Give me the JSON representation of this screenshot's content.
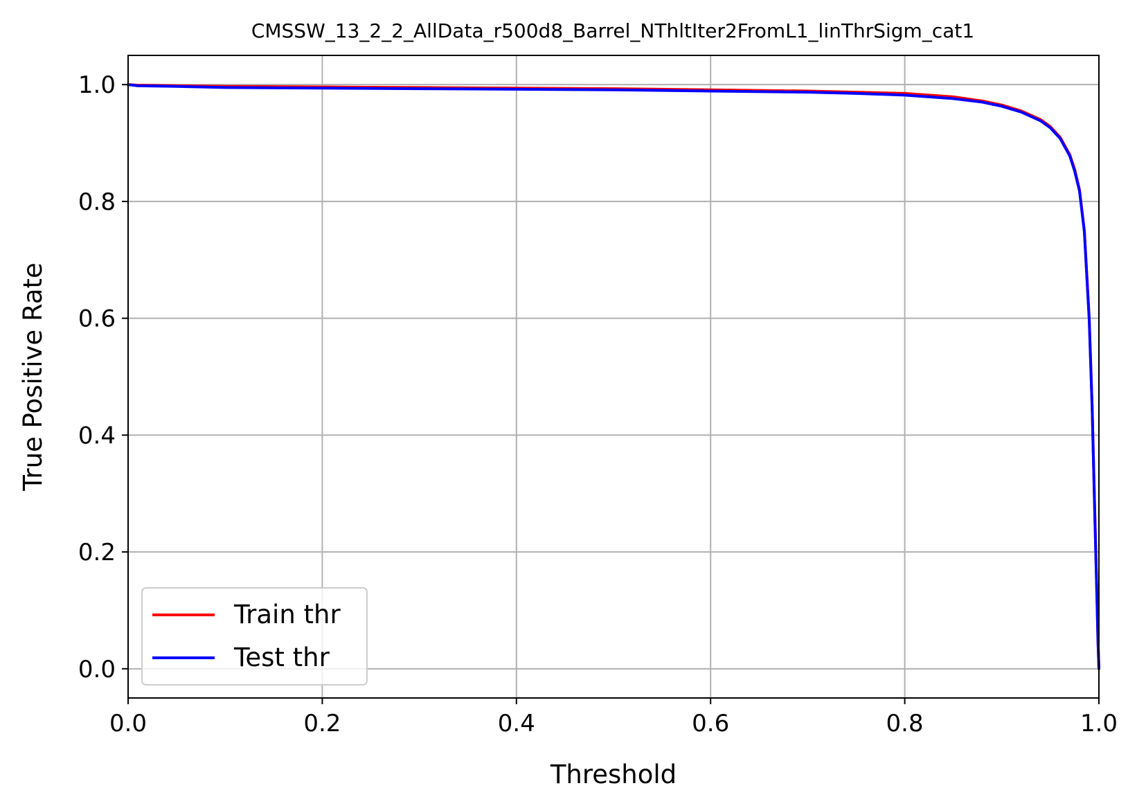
{
  "chart_data": {
    "type": "line",
    "title": "CMSSW_13_2_2_AllData_r500d8_Barrel_NThltIter2FromL1_linThrSigm_cat1",
    "xlabel": "Threshold",
    "ylabel": "True Positive Rate",
    "xlim": [
      0.0,
      1.0
    ],
    "ylim": [
      -0.05,
      1.05
    ],
    "xticks": [
      "0.0",
      "0.2",
      "0.4",
      "0.6",
      "0.8",
      "1.0"
    ],
    "yticks": [
      "0.0",
      "0.2",
      "0.4",
      "0.6",
      "0.8",
      "1.0"
    ],
    "grid": true,
    "legend_position": "lower-left",
    "series": [
      {
        "name": "Train thr",
        "color": "#ff0000",
        "x": [
          0.0,
          0.01,
          0.05,
          0.1,
          0.2,
          0.3,
          0.4,
          0.5,
          0.6,
          0.7,
          0.75,
          0.8,
          0.85,
          0.88,
          0.9,
          0.92,
          0.94,
          0.95,
          0.96,
          0.97,
          0.975,
          0.98,
          0.985,
          0.99,
          0.993,
          0.996,
          0.998,
          0.999,
          1.0
        ],
        "y": [
          1.0,
          0.999,
          0.998,
          0.997,
          0.996,
          0.995,
          0.994,
          0.993,
          0.991,
          0.989,
          0.987,
          0.985,
          0.979,
          0.972,
          0.965,
          0.955,
          0.94,
          0.928,
          0.91,
          0.88,
          0.855,
          0.82,
          0.75,
          0.6,
          0.45,
          0.25,
          0.12,
          0.05,
          0.0
        ]
      },
      {
        "name": "Test thr",
        "color": "#0000ff",
        "x": [
          0.0,
          0.01,
          0.05,
          0.1,
          0.2,
          0.3,
          0.4,
          0.5,
          0.6,
          0.7,
          0.75,
          0.8,
          0.85,
          0.88,
          0.9,
          0.92,
          0.94,
          0.95,
          0.96,
          0.97,
          0.975,
          0.98,
          0.985,
          0.99,
          0.993,
          0.996,
          0.998,
          0.999,
          1.0
        ],
        "y": [
          1.0,
          0.998,
          0.997,
          0.995,
          0.994,
          0.993,
          0.992,
          0.991,
          0.989,
          0.987,
          0.985,
          0.982,
          0.976,
          0.97,
          0.963,
          0.953,
          0.938,
          0.926,
          0.908,
          0.878,
          0.852,
          0.818,
          0.748,
          0.598,
          0.448,
          0.248,
          0.118,
          0.048,
          0.0
        ]
      }
    ]
  }
}
